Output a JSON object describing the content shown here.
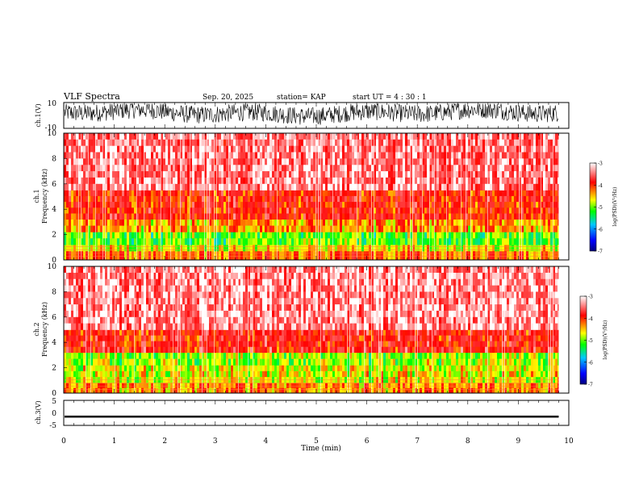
{
  "header": {
    "title": "VLF Spectra",
    "date": "Sep. 20, 2025",
    "station": "station= KAP",
    "start": "start  UT =   4 : 30 : 1"
  },
  "chart_data": [
    {
      "type": "line",
      "name": "ch1-waveform",
      "ylabel": "ch.1(V)",
      "ylim": [
        -10,
        10
      ],
      "yticks": [
        "10",
        "-10"
      ],
      "xlim": [
        0,
        10
      ],
      "description_values": {
        "data_end_min": 9.8,
        "typical_amplitude_V": [
          -3,
          7
        ]
      }
    },
    {
      "type": "heatmap",
      "name": "ch1-spectrogram",
      "ylabel_ch": "ch.1",
      "ylabel": "Frequency (kHz)",
      "ylim": [
        0,
        10
      ],
      "yticks": [
        "0",
        "2",
        "4",
        "6",
        "8",
        "10"
      ],
      "xlim": [
        0,
        10
      ],
      "data_end_min": 9.8,
      "intensity_bands": [
        {
          "from_khz": 0,
          "to_khz": 0.7,
          "level": -4.3
        },
        {
          "from_khz": 0.7,
          "to_khz": 1.2,
          "level": -4.8
        },
        {
          "from_khz": 1.2,
          "to_khz": 2.2,
          "level": -5.2
        },
        {
          "from_khz": 2.2,
          "to_khz": 3.2,
          "level": -4.5
        },
        {
          "from_khz": 3.2,
          "to_khz": 5.5,
          "level": -4.0
        },
        {
          "from_khz": 5.5,
          "to_khz": 10,
          "level": -3.4
        }
      ]
    },
    {
      "type": "heatmap",
      "name": "ch2-spectrogram",
      "ylabel_ch": "ch.2",
      "ylabel": "Frequency (kHz)",
      "ylim": [
        0,
        10
      ],
      "yticks": [
        "0",
        "2",
        "4",
        "6",
        "8",
        "10"
      ],
      "xlim": [
        0,
        10
      ],
      "data_end_min": 9.8,
      "intensity_bands": [
        {
          "from_khz": 0,
          "to_khz": 0.8,
          "level": -4.4
        },
        {
          "from_khz": 0.8,
          "to_khz": 2.2,
          "level": -4.8
        },
        {
          "from_khz": 2.2,
          "to_khz": 3.2,
          "level": -5.0
        },
        {
          "from_khz": 3.2,
          "to_khz": 5.0,
          "level": -3.9
        },
        {
          "from_khz": 5.0,
          "to_khz": 10,
          "level": -3.3
        }
      ]
    },
    {
      "type": "line",
      "name": "ch3-waveform",
      "ylabel": "ch.3(V)",
      "ylim": [
        -5,
        5
      ],
      "yticks": [
        "5",
        "0",
        "-5"
      ],
      "xlim": [
        0,
        10
      ],
      "xlabel": "Time (min)",
      "xticks": [
        "0",
        "1",
        "2",
        "3",
        "4",
        "5",
        "6",
        "7",
        "8",
        "9",
        "10"
      ],
      "description_values": {
        "data_end_min": 9.8,
        "level_V": -1.5,
        "amplitude_V": 0.4
      }
    }
  ],
  "colorbars": [
    {
      "name": "ch1-colorbar",
      "label": "log(PSD)(V²/Hz)",
      "range": [
        -7,
        -3
      ],
      "ticks": [
        "-3",
        "-4",
        "-5",
        "-6",
        "-7"
      ]
    },
    {
      "name": "ch2-colorbar",
      "label": "log(PSD)(V²/Hz)",
      "range": [
        -7,
        -3
      ],
      "ticks": [
        "-3",
        "-4",
        "-5",
        "-6",
        "-7"
      ]
    }
  ],
  "colors": {
    "axis": "#000000",
    "scale": [
      "#000080",
      "#0000ff",
      "#00c8ff",
      "#00ff00",
      "#ffff00",
      "#ff8000",
      "#ff0000",
      "#ffffff"
    ]
  }
}
